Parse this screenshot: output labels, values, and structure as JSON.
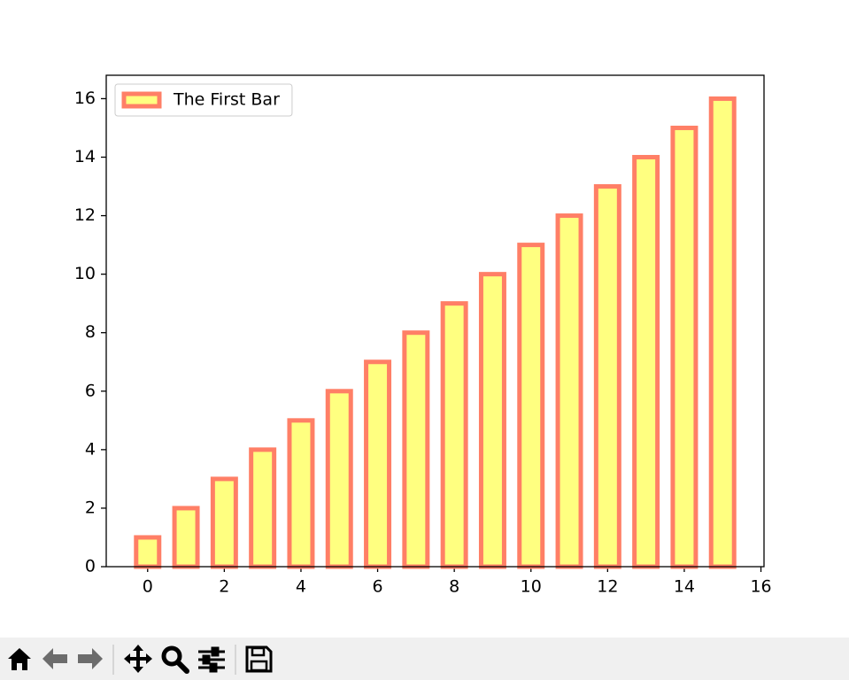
{
  "chart_data": {
    "type": "bar",
    "x": [
      0,
      1,
      2,
      3,
      4,
      5,
      6,
      7,
      8,
      9,
      10,
      11,
      12,
      13,
      14,
      15
    ],
    "series": [
      {
        "name": "The First Bar",
        "color": "#ffff80",
        "edgecolor": "#ff7f66",
        "values": [
          1,
          2,
          3,
          4,
          5,
          6,
          7,
          8,
          9,
          10,
          11,
          12,
          13,
          14,
          15,
          16
        ]
      }
    ],
    "bar_width": 0.6,
    "xlim": [
      -1.08,
      16.08
    ],
    "xticks": [
      0,
      2,
      4,
      6,
      8,
      10,
      12,
      14,
      16
    ],
    "ylim": [
      0,
      16.8
    ],
    "yticks": [
      0,
      2,
      4,
      6,
      8,
      10,
      12,
      14,
      16
    ],
    "legend": "upper left"
  }
}
